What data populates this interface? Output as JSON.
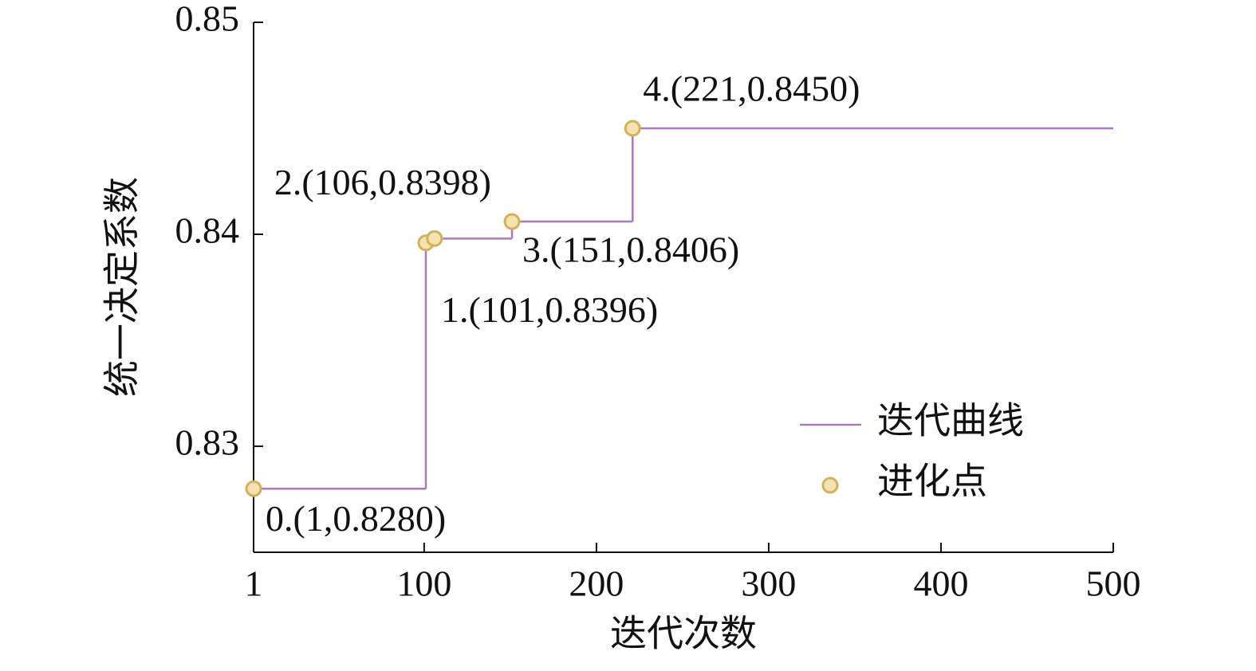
{
  "chart_data": {
    "type": "line",
    "x_label": "迭代次数",
    "y_label": "统一决定系数",
    "xlim": [
      1,
      500
    ],
    "xticks": [
      1,
      100,
      200,
      300,
      400,
      500
    ],
    "ylim": [
      0.825,
      0.85
    ],
    "yticks": [
      0.83,
      0.84,
      0.85
    ],
    "step": "post",
    "legend": "right",
    "series": [
      {
        "name": "迭代曲线",
        "color": "#a77bbb",
        "x": [
          1,
          101,
          106,
          151,
          221,
          500
        ],
        "values": [
          0.828,
          0.8396,
          0.8398,
          0.8406,
          0.845,
          0.845
        ]
      },
      {
        "name": "进化点",
        "color": "#f5e2ae",
        "edge_color": "#d2b15a",
        "marker": "circle",
        "x": [
          1,
          101,
          106,
          151,
          221
        ],
        "values": [
          0.828,
          0.8396,
          0.8398,
          0.8406,
          0.845
        ],
        "value_labels": [
          "0.(1,0.8280)",
          "1.(101,0.8396)",
          "2.(106,0.8398)",
          "3.(151,0.8406)",
          "4.(221,0.8450)"
        ]
      }
    ]
  }
}
